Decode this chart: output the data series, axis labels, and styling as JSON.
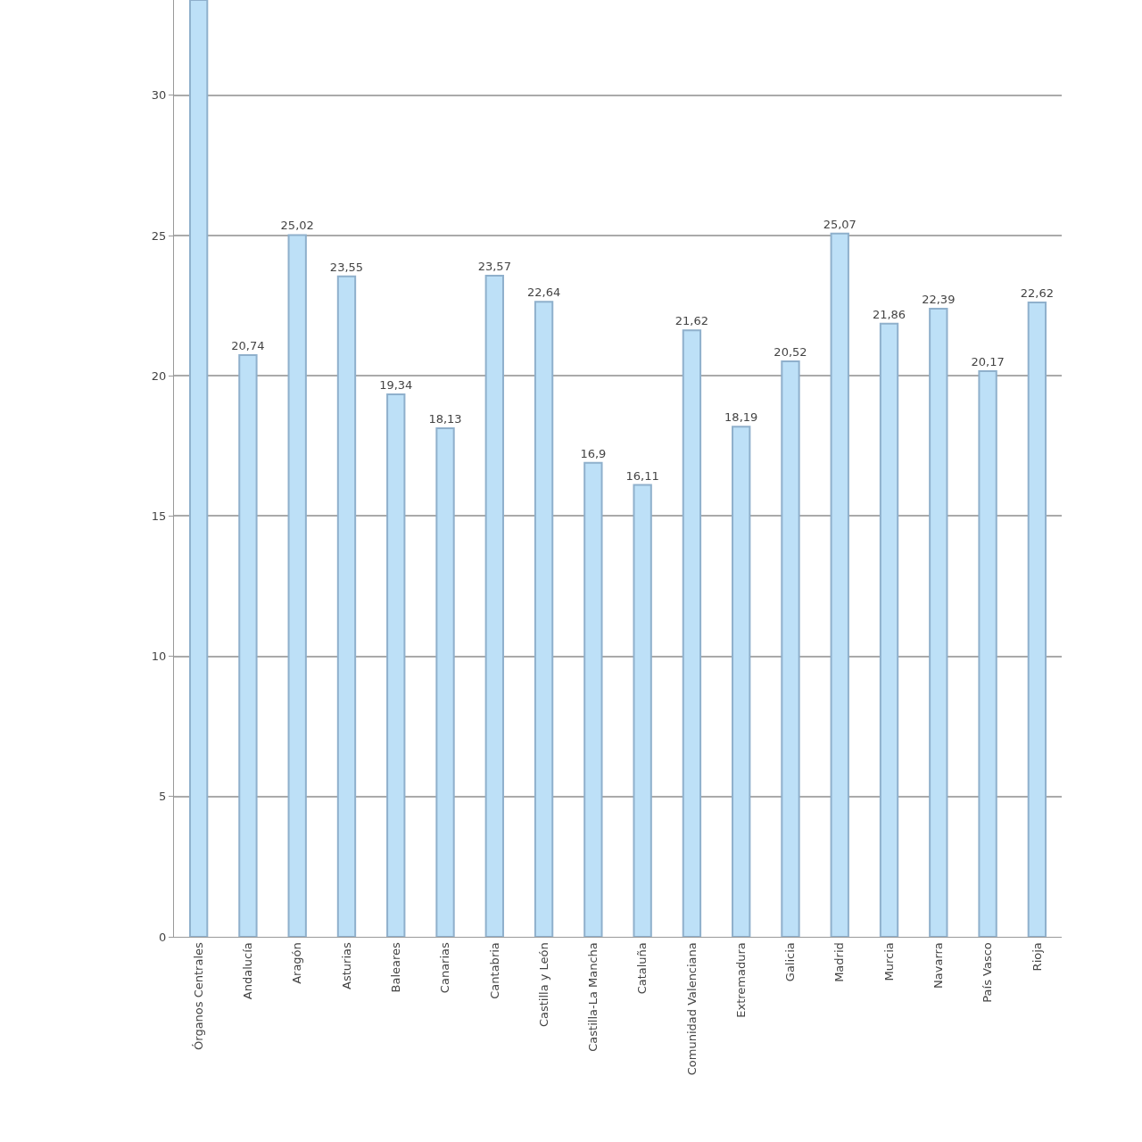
{
  "chart_data": {
    "type": "bar",
    "categories": [
      "Órganos Centrales",
      "Andalucía",
      "Aragón",
      "Asturias",
      "Baleares",
      "Canarias",
      "Cantabria",
      "Castilla y León",
      "Castilla-La Mancha",
      "Cataluña",
      "Comunidad Valenciana",
      "Extremadura",
      "Galicia",
      "Madrid",
      "Murcia",
      "Navarra",
      "País Vasco",
      "Rioja"
    ],
    "values": [
      33.4,
      20.74,
      25.02,
      23.55,
      19.34,
      18.13,
      23.57,
      22.64,
      16.9,
      16.11,
      21.62,
      18.19,
      20.52,
      25.07,
      21.86,
      22.39,
      20.17,
      22.62
    ],
    "value_labels": [
      null,
      "20,74",
      "25,02",
      "23,55",
      "19,34",
      "18,13",
      "23,57",
      "22,64",
      "16,9",
      "16,11",
      "21,62",
      "18,19",
      "20,52",
      "25,07",
      "21,86",
      "22,39",
      "20,17",
      "22,62"
    ],
    "color": "#bde0f7",
    "ylim": [
      0,
      33.4
    ],
    "yticks": [
      0,
      5,
      10,
      15,
      20,
      25,
      30
    ],
    "grid": "y"
  }
}
